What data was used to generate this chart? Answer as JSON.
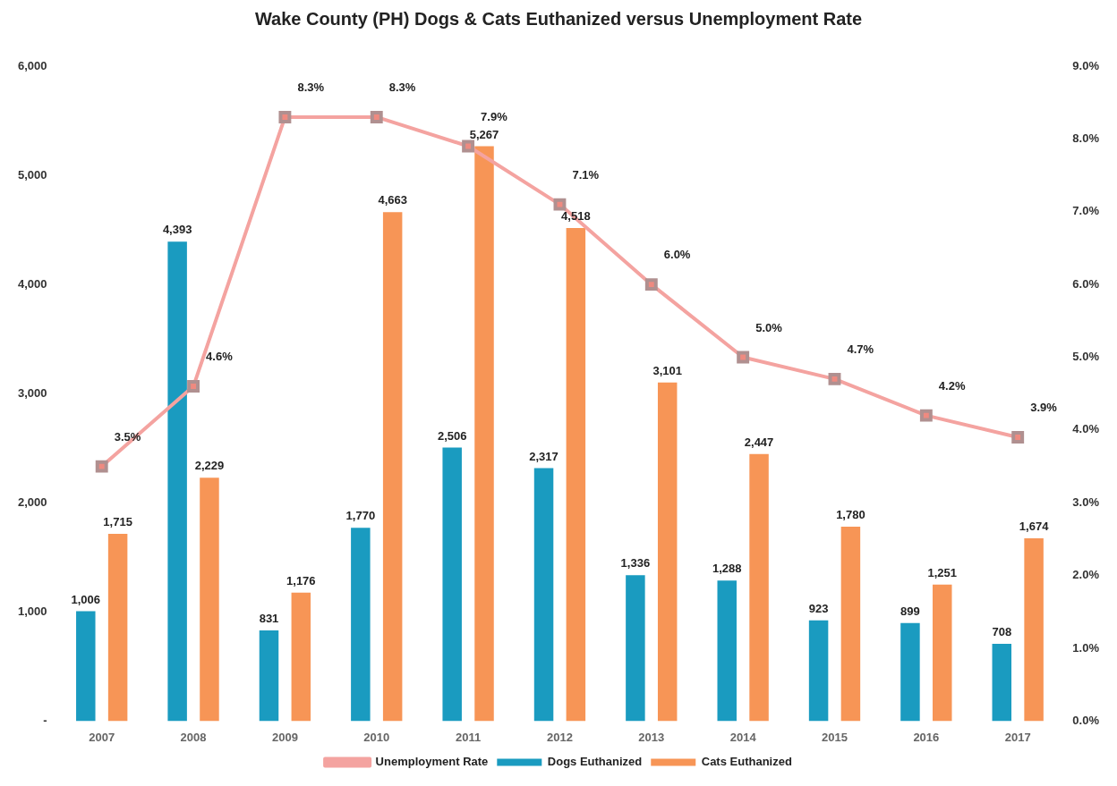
{
  "chart_data": {
    "type": "bar",
    "title": "Wake County (PH) Dogs & Cats Euthanized versus Unemployment Rate",
    "categories": [
      "2007",
      "2008",
      "2009",
      "2010",
      "2011",
      "2012",
      "2013",
      "2014",
      "2015",
      "2016",
      "2017"
    ],
    "series": [
      {
        "name": "Dogs Euthanized",
        "color": "#1a9bc0",
        "values": [
          1006,
          4393,
          831,
          1770,
          2506,
          2317,
          1336,
          1288,
          923,
          899,
          708
        ],
        "value_labels": [
          "1,006",
          "4,393",
          "831",
          "1,770",
          "2,506",
          "2,317",
          "1,336",
          "1,288",
          "923",
          "899",
          "708"
        ]
      },
      {
        "name": "Cats Euthanized",
        "color": "#f79556",
        "values": [
          1715,
          2229,
          1176,
          4663,
          5267,
          4518,
          3101,
          2447,
          1780,
          1251,
          1674
        ],
        "value_labels": [
          "1,715",
          "2,229",
          "1,176",
          "4,663",
          "5,267",
          "4,518",
          "3,101",
          "2,447",
          "1,780",
          "1,251",
          "1,674"
        ]
      },
      {
        "name": "Unemployment Rate",
        "type": "line",
        "axis": "y2",
        "color": "#f4a3a0",
        "marker": "square",
        "line_style": "solid",
        "values": [
          3.5,
          4.6,
          8.3,
          8.3,
          7.9,
          7.1,
          6.0,
          5.0,
          4.7,
          4.2,
          3.9
        ],
        "value_labels": [
          "3.5%",
          "4.6%",
          "8.3%",
          "8.3%",
          "7.9%",
          "7.1%",
          "6.0%",
          "5.0%",
          "4.7%",
          "4.2%",
          "3.9%"
        ]
      }
    ],
    "ylim": [
      0,
      6000
    ],
    "yticks": [
      {
        "value": 0,
        "label": "-"
      },
      {
        "value": 1000,
        "label": "1,000"
      },
      {
        "value": 2000,
        "label": "2,000"
      },
      {
        "value": 3000,
        "label": "3,000"
      },
      {
        "value": 4000,
        "label": "4,000"
      },
      {
        "value": 5000,
        "label": "5,000"
      },
      {
        "value": 6000,
        "label": "6,000"
      }
    ],
    "y2lim": [
      0,
      9
    ],
    "y2ticks": [
      {
        "value": 0,
        "label": "0.0%"
      },
      {
        "value": 1,
        "label": "1.0%"
      },
      {
        "value": 2,
        "label": "2.0%"
      },
      {
        "value": 3,
        "label": "3.0%"
      },
      {
        "value": 4,
        "label": "4.0%"
      },
      {
        "value": 5,
        "label": "5.0%"
      },
      {
        "value": 6,
        "label": "6.0%"
      },
      {
        "value": 7,
        "label": "7.0%"
      },
      {
        "value": 8,
        "label": "8.0%"
      },
      {
        "value": 9,
        "label": "9.0%"
      }
    ],
    "grid": false,
    "legend": "bottom"
  }
}
